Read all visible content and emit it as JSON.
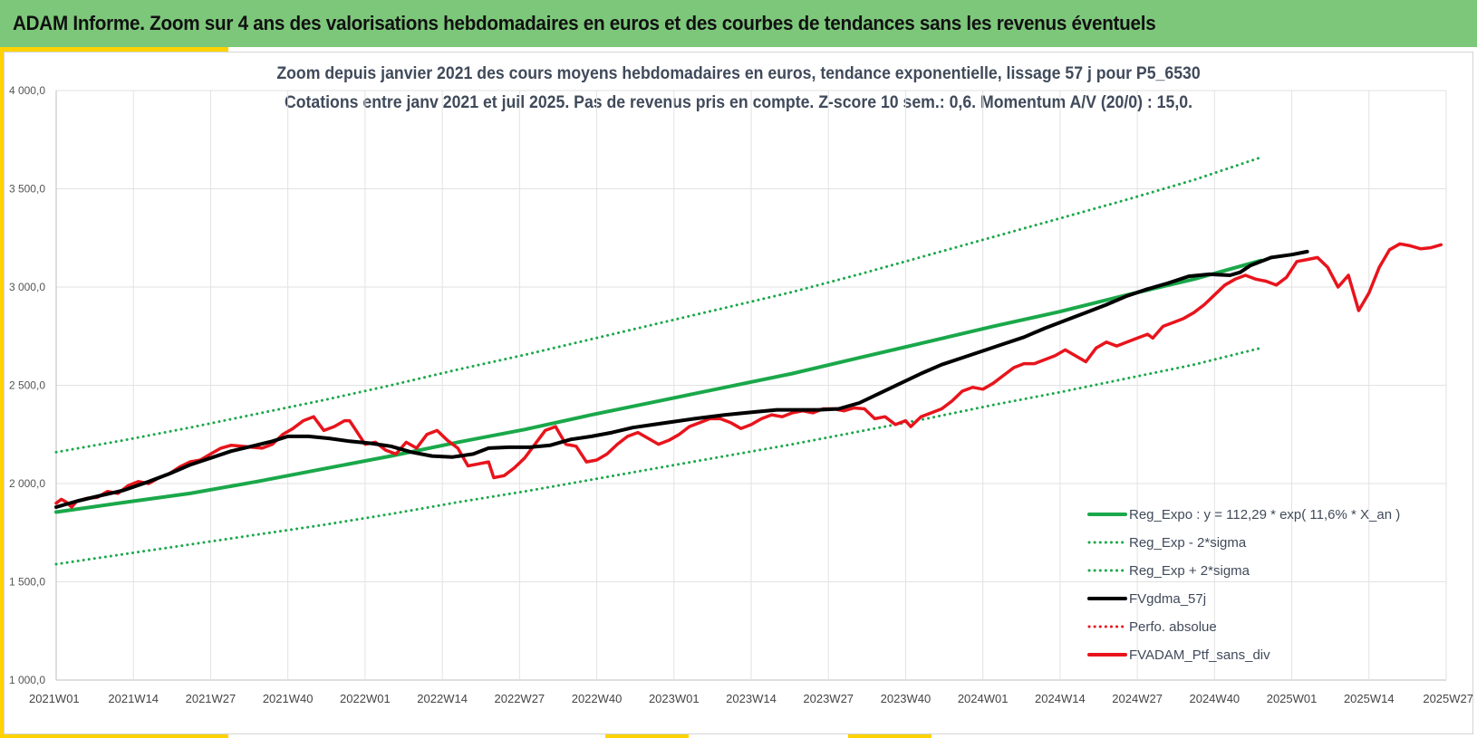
{
  "header": {
    "title": "ADAM Informe. Zoom sur 4 ans des valorisations hebdomadaires en euros et des courbes de tendances sans les revenus éventuels"
  },
  "colors": {
    "header_bg": "#7dc77b",
    "accent": "#ffd200",
    "trend": "#1aa84a",
    "fv_gdma": "#000000",
    "portfolio": "#e8141c",
    "perf": "#e8141c"
  },
  "chart_data": {
    "type": "line",
    "title": "Zoom depuis janvier 2021 des cours moyens hebdomadaires  en euros, tendance exponentielle, lissage 57 j pour P5_6530",
    "subtitle": "Cotations entre janv 2021 et juil 2025. Pas de revenus pris en compte. Z-score 10 sem.: 0,6. Momentum A/V (20/0) : 15,0.",
    "ylim": [
      1000,
      4000
    ],
    "y_ticks": [
      "1 000,0",
      "1 500,0",
      "2 000,0",
      "2 500,0",
      "3 000,0",
      "3 500,0",
      "4 000,0"
    ],
    "x_tick_labels": [
      "2021W01",
      "2021W14",
      "2021W27",
      "2021W40",
      "2022W01",
      "2022W14",
      "2022W27",
      "2022W40",
      "2023W01",
      "2023W14",
      "2023W27",
      "2023W40",
      "2024W01",
      "2024W14",
      "2024W27",
      "2024W40",
      "2025W01",
      "2025W14",
      "2025W27"
    ],
    "grid": "vertical and horizontal",
    "legend_position": "bottom-right",
    "legend": [
      {
        "label": "Reg_Expo : y = 112,29 * exp( 11,6% *  X_an )",
        "color": "#1aa84a",
        "style": "solid"
      },
      {
        "label": "Reg_Exp - 2*sigma",
        "color": "#1aa84a",
        "style": "dotted"
      },
      {
        "label": "Reg_Exp + 2*sigma",
        "color": "#1aa84a",
        "style": "dotted"
      },
      {
        "label": "FVgdma_57j",
        "color": "#000000",
        "style": "solid"
      },
      {
        "label": "Perfo. absolue",
        "color": "#e8141c",
        "style": "dotted"
      },
      {
        "label": "FVADAM_Ptf_sans_div",
        "color": "#e8141c",
        "style": "solid"
      }
    ],
    "series": [
      {
        "name": "Reg_Expo : y = 112,29 * exp( 11,6% *  X_an )",
        "style": "solid",
        "color": "#1aa84a",
        "points": [
          [
            0,
            1855
          ],
          [
            13,
            1903
          ],
          [
            26,
            1950
          ],
          [
            39,
            2010
          ],
          [
            52,
            2075
          ],
          [
            65,
            2140
          ],
          [
            78,
            2210
          ],
          [
            91,
            2275
          ],
          [
            104,
            2350
          ],
          [
            117,
            2420
          ],
          [
            130,
            2490
          ],
          [
            143,
            2560
          ],
          [
            156,
            2640
          ],
          [
            169,
            2720
          ],
          [
            182,
            2800
          ],
          [
            195,
            2875
          ],
          [
            208,
            2960
          ],
          [
            221,
            3040
          ],
          [
            234,
            3135
          ]
        ]
      },
      {
        "name": "Reg_Exp - 2*sigma",
        "style": "dotted",
        "color": "#1aa84a",
        "points": [
          [
            0,
            1590
          ],
          [
            13,
            1640
          ],
          [
            26,
            1690
          ],
          [
            39,
            1740
          ],
          [
            52,
            1790
          ],
          [
            65,
            1845
          ],
          [
            78,
            1905
          ],
          [
            91,
            1960
          ],
          [
            104,
            2020
          ],
          [
            117,
            2080
          ],
          [
            130,
            2140
          ],
          [
            143,
            2200
          ],
          [
            156,
            2265
          ],
          [
            169,
            2330
          ],
          [
            182,
            2400
          ],
          [
            195,
            2465
          ],
          [
            208,
            2535
          ],
          [
            221,
            2605
          ],
          [
            234,
            2690
          ]
        ]
      },
      {
        "name": "Reg_Exp + 2*sigma",
        "style": "dotted",
        "color": "#1aa84a",
        "points": [
          [
            0,
            2160
          ],
          [
            13,
            2220
          ],
          [
            26,
            2285
          ],
          [
            39,
            2355
          ],
          [
            52,
            2425
          ],
          [
            65,
            2500
          ],
          [
            78,
            2580
          ],
          [
            91,
            2655
          ],
          [
            104,
            2735
          ],
          [
            117,
            2815
          ],
          [
            130,
            2895
          ],
          [
            143,
            2975
          ],
          [
            156,
            3065
          ],
          [
            169,
            3160
          ],
          [
            182,
            3255
          ],
          [
            195,
            3350
          ],
          [
            208,
            3445
          ],
          [
            221,
            3545
          ],
          [
            234,
            3660
          ]
        ]
      },
      {
        "name": "FVgdma_57j",
        "style": "solid",
        "color": "#000000",
        "points": [
          [
            0,
            1880
          ],
          [
            4,
            1910
          ],
          [
            8,
            1935
          ],
          [
            13,
            1965
          ],
          [
            18,
            2010
          ],
          [
            22,
            2050
          ],
          [
            26,
            2095
          ],
          [
            30,
            2130
          ],
          [
            34,
            2165
          ],
          [
            38,
            2190
          ],
          [
            42,
            2215
          ],
          [
            45,
            2240
          ],
          [
            49,
            2240
          ],
          [
            53,
            2230
          ],
          [
            57,
            2215
          ],
          [
            61,
            2205
          ],
          [
            65,
            2190
          ],
          [
            69,
            2160
          ],
          [
            73,
            2140
          ],
          [
            77,
            2135
          ],
          [
            81,
            2150
          ],
          [
            84,
            2180
          ],
          [
            88,
            2185
          ],
          [
            92,
            2185
          ],
          [
            96,
            2195
          ],
          [
            100,
            2225
          ],
          [
            104,
            2240
          ],
          [
            108,
            2260
          ],
          [
            112,
            2285
          ],
          [
            116,
            2300
          ],
          [
            120,
            2315
          ],
          [
            124,
            2330
          ],
          [
            130,
            2350
          ],
          [
            136,
            2365
          ],
          [
            140,
            2375
          ],
          [
            144,
            2375
          ],
          [
            148,
            2375
          ],
          [
            152,
            2380
          ],
          [
            156,
            2410
          ],
          [
            160,
            2460
          ],
          [
            164,
            2510
          ],
          [
            168,
            2560
          ],
          [
            172,
            2605
          ],
          [
            176,
            2640
          ],
          [
            180,
            2675
          ],
          [
            184,
            2710
          ],
          [
            188,
            2745
          ],
          [
            192,
            2790
          ],
          [
            196,
            2830
          ],
          [
            200,
            2870
          ],
          [
            204,
            2910
          ],
          [
            208,
            2955
          ],
          [
            212,
            2990
          ],
          [
            216,
            3020
          ],
          [
            220,
            3055
          ],
          [
            224,
            3065
          ],
          [
            228,
            3060
          ],
          [
            230,
            3075
          ],
          [
            232,
            3110
          ],
          [
            236,
            3150
          ],
          [
            240,
            3165
          ],
          [
            243,
            3180
          ]
        ]
      },
      {
        "name": "FVADAM_Ptf_sans_div",
        "style": "solid",
        "color": "#e8141c",
        "points": [
          [
            0,
            1900
          ],
          [
            1,
            1920
          ],
          [
            2,
            1905
          ],
          [
            3,
            1880
          ],
          [
            4,
            1910
          ],
          [
            6,
            1925
          ],
          [
            8,
            1930
          ],
          [
            10,
            1960
          ],
          [
            12,
            1950
          ],
          [
            14,
            1990
          ],
          [
            16,
            2010
          ],
          [
            18,
            2000
          ],
          [
            20,
            2030
          ],
          [
            22,
            2050
          ],
          [
            24,
            2085
          ],
          [
            26,
            2110
          ],
          [
            28,
            2120
          ],
          [
            30,
            2150
          ],
          [
            32,
            2180
          ],
          [
            34,
            2195
          ],
          [
            36,
            2190
          ],
          [
            38,
            2185
          ],
          [
            40,
            2180
          ],
          [
            42,
            2200
          ],
          [
            44,
            2250
          ],
          [
            46,
            2280
          ],
          [
            48,
            2320
          ],
          [
            50,
            2340
          ],
          [
            52,
            2270
          ],
          [
            54,
            2290
          ],
          [
            56,
            2320
          ],
          [
            57,
            2320
          ],
          [
            58,
            2280
          ],
          [
            60,
            2200
          ],
          [
            62,
            2210
          ],
          [
            64,
            2170
          ],
          [
            66,
            2150
          ],
          [
            68,
            2210
          ],
          [
            70,
            2180
          ],
          [
            72,
            2250
          ],
          [
            74,
            2270
          ],
          [
            76,
            2220
          ],
          [
            78,
            2180
          ],
          [
            80,
            2090
          ],
          [
            82,
            2100
          ],
          [
            84,
            2110
          ],
          [
            85,
            2030
          ],
          [
            87,
            2040
          ],
          [
            89,
            2080
          ],
          [
            91,
            2130
          ],
          [
            93,
            2200
          ],
          [
            95,
            2270
          ],
          [
            97,
            2290
          ],
          [
            99,
            2200
          ],
          [
            101,
            2190
          ],
          [
            103,
            2110
          ],
          [
            105,
            2120
          ],
          [
            107,
            2150
          ],
          [
            109,
            2200
          ],
          [
            111,
            2240
          ],
          [
            113,
            2260
          ],
          [
            115,
            2230
          ],
          [
            117,
            2200
          ],
          [
            119,
            2220
          ],
          [
            121,
            2250
          ],
          [
            123,
            2290
          ],
          [
            125,
            2310
          ],
          [
            127,
            2330
          ],
          [
            129,
            2330
          ],
          [
            131,
            2310
          ],
          [
            133,
            2280
          ],
          [
            135,
            2300
          ],
          [
            137,
            2330
          ],
          [
            139,
            2350
          ],
          [
            141,
            2340
          ],
          [
            143,
            2360
          ],
          [
            145,
            2370
          ],
          [
            147,
            2360
          ],
          [
            149,
            2380
          ],
          [
            151,
            2380
          ],
          [
            153,
            2370
          ],
          [
            155,
            2385
          ],
          [
            157,
            2380
          ],
          [
            159,
            2330
          ],
          [
            161,
            2340
          ],
          [
            163,
            2300
          ],
          [
            165,
            2320
          ],
          [
            166,
            2290
          ],
          [
            168,
            2340
          ],
          [
            170,
            2360
          ],
          [
            172,
            2380
          ],
          [
            174,
            2420
          ],
          [
            176,
            2470
          ],
          [
            178,
            2490
          ],
          [
            180,
            2480
          ],
          [
            182,
            2510
          ],
          [
            184,
            2550
          ],
          [
            186,
            2590
          ],
          [
            188,
            2610
          ],
          [
            190,
            2610
          ],
          [
            192,
            2630
          ],
          [
            194,
            2650
          ],
          [
            196,
            2680
          ],
          [
            198,
            2650
          ],
          [
            200,
            2620
          ],
          [
            202,
            2690
          ],
          [
            204,
            2720
          ],
          [
            206,
            2700
          ],
          [
            208,
            2720
          ],
          [
            210,
            2740
          ],
          [
            212,
            2760
          ],
          [
            213,
            2740
          ],
          [
            215,
            2800
          ],
          [
            217,
            2820
          ],
          [
            219,
            2840
          ],
          [
            221,
            2870
          ],
          [
            223,
            2910
          ],
          [
            225,
            2960
          ],
          [
            227,
            3010
          ],
          [
            229,
            3040
          ],
          [
            231,
            3060
          ],
          [
            233,
            3040
          ],
          [
            235,
            3030
          ],
          [
            237,
            3010
          ],
          [
            239,
            3050
          ],
          [
            241,
            3130
          ],
          [
            243,
            3140
          ],
          [
            245,
            3150
          ],
          [
            247,
            3100
          ],
          [
            249,
            3000
          ],
          [
            251,
            3060
          ],
          [
            253,
            2880
          ],
          [
            255,
            2970
          ],
          [
            257,
            3100
          ],
          [
            259,
            3190
          ],
          [
            261,
            3220
          ],
          [
            263,
            3210
          ],
          [
            265,
            3195
          ],
          [
            267,
            3200
          ],
          [
            269,
            3215
          ]
        ]
      }
    ]
  }
}
